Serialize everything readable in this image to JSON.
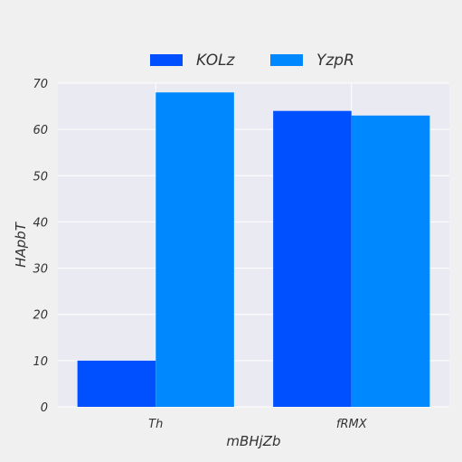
{
  "chart_data": {
    "type": "bar",
    "categories": [
      "Th",
      "fRMX"
    ],
    "series": [
      {
        "name": "KOLz",
        "values": [
          10,
          64
        ],
        "color": "#0050ff"
      },
      {
        "name": "YzpR",
        "values": [
          68,
          63
        ],
        "color": "#0088ff"
      }
    ],
    "xlabel": "mBHjZb",
    "ylabel": "HApbT",
    "ylim": [
      0,
      70
    ],
    "yticks": [
      0,
      10,
      20,
      30,
      40,
      50,
      60,
      70
    ],
    "grid": true,
    "legend_position": "top-center",
    "colors": {
      "background": "#f0f0f0",
      "plot_background": "#eaeaf2",
      "grid": "#ffffff"
    }
  }
}
